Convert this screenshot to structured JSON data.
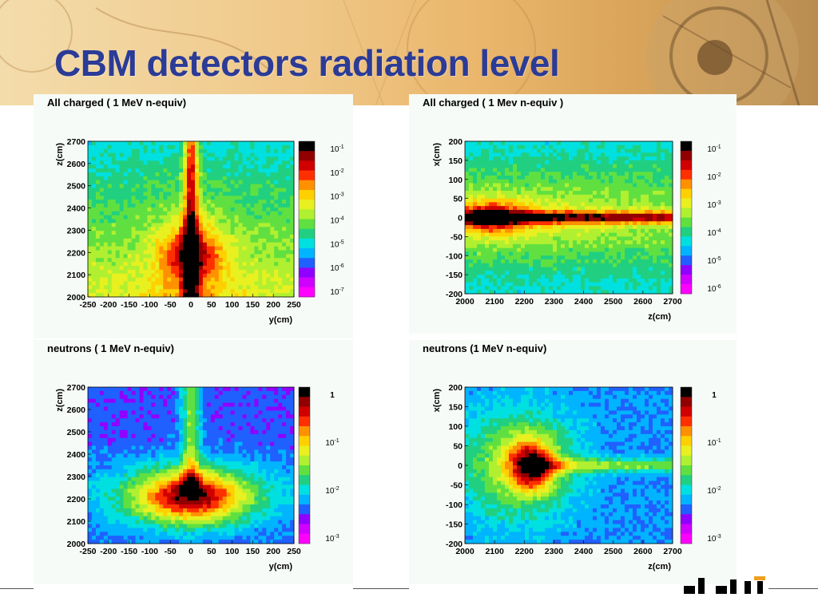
{
  "slide": {
    "title": "CBM detectors radiation level"
  },
  "colors": {
    "title": "#2b3b96",
    "palette": [
      "#f0f",
      "#d000ff",
      "#9000ff",
      "#2060ff",
      "#00b4ff",
      "#00e0e0",
      "#20d080",
      "#60e040",
      "#b0f030",
      "#e8f020",
      "#ffd000",
      "#ff9000",
      "#ff3000",
      "#d00000",
      "#900000",
      "#000"
    ]
  },
  "chart_data": [
    {
      "type": "heatmap",
      "title": "All charged ( 1 MeV n-equiv)",
      "xlabel": "y(cm)",
      "ylabel": "z(cm)",
      "x_ticks": [
        "-250",
        "-200",
        "-150",
        "-100",
        "-50",
        "0",
        "50",
        "100",
        "150",
        "200",
        "250"
      ],
      "y_ticks": [
        "2000",
        "2100",
        "2200",
        "2300",
        "2400",
        "2500",
        "2600",
        "2700"
      ],
      "xlim": [
        -250,
        250
      ],
      "ylim": [
        2000,
        2700
      ],
      "colorbar_labels": [
        "10-1",
        "10-2",
        "10-3",
        "10-4",
        "10-5",
        "10-6",
        "10-7"
      ],
      "colorbar_scale": "log"
    },
    {
      "type": "heatmap",
      "title": "All charged ( 1 Mev n-equiv )",
      "xlabel": "z(cm)",
      "ylabel": "x(cm)",
      "x_ticks": [
        "2000",
        "2100",
        "2200",
        "2300",
        "2400",
        "2500",
        "2600",
        "2700"
      ],
      "y_ticks": [
        "-200",
        "-150",
        "-100",
        "-50",
        "0",
        "50",
        "100",
        "150",
        "200"
      ],
      "xlim": [
        2000,
        2700
      ],
      "ylim": [
        -200,
        200
      ],
      "colorbar_labels": [
        "10-1",
        "10-2",
        "10-3",
        "10-4",
        "10-5",
        "10-6"
      ],
      "colorbar_scale": "log"
    },
    {
      "type": "heatmap",
      "title": "neutrons ( 1 MeV n-equiv)",
      "xlabel": "y(cm)",
      "ylabel": "z(cm)",
      "x_ticks": [
        "-250",
        "-200",
        "-150",
        "-100",
        "-50",
        "0",
        "50",
        "100",
        "150",
        "200",
        "250"
      ],
      "y_ticks": [
        "2000",
        "2100",
        "2200",
        "2300",
        "2400",
        "2500",
        "2600",
        "2700"
      ],
      "xlim": [
        -250,
        250
      ],
      "ylim": [
        2000,
        2700
      ],
      "colorbar_labels": [
        "1",
        "10-1",
        "10-2",
        "10-3"
      ],
      "colorbar_scale": "log"
    },
    {
      "type": "heatmap",
      "title": "neutrons (1 MeV n-equiv)",
      "xlabel": "z(cm)",
      "ylabel": "x(cm)",
      "x_ticks": [
        "2000",
        "2100",
        "2200",
        "2300",
        "2400",
        "2500",
        "2600",
        "2700"
      ],
      "y_ticks": [
        "-200",
        "-150",
        "-100",
        "-50",
        "0",
        "50",
        "100",
        "150",
        "200"
      ],
      "xlim": [
        2000,
        2700
      ],
      "ylim": [
        -200,
        200
      ],
      "colorbar_labels": [
        "1",
        "10-1",
        "10-2",
        "10-3"
      ],
      "colorbar_scale": "log"
    }
  ]
}
